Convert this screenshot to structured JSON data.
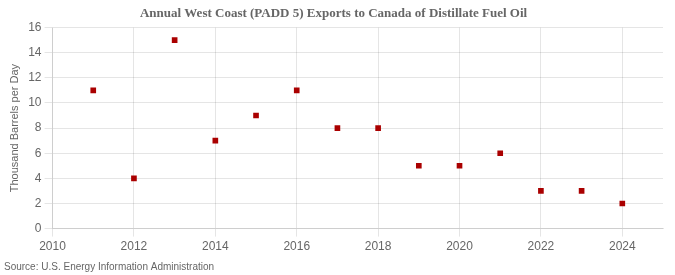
{
  "chart_data": {
    "type": "scatter",
    "title": "Annual West Coast (PADD 5) Exports to Canada of Distillate Fuel Oil",
    "ylabel": "Thousand Barrels per Day",
    "annotation": "Source: U.S. Energy Information Administration",
    "x": [
      2011,
      2012,
      2013,
      2014,
      2015,
      2016,
      2017,
      2018,
      2019,
      2020,
      2021,
      2022,
      2023,
      2024
    ],
    "values": [
      11,
      4,
      15,
      7,
      9,
      11,
      8,
      8,
      5,
      5,
      6,
      3,
      3,
      2
    ],
    "color": "#aa0000",
    "marker": "square",
    "xlim": [
      2010,
      2025
    ],
    "ylim": [
      0,
      16
    ],
    "xticks": [
      2010,
      2012,
      2014,
      2016,
      2018,
      2020,
      2022,
      2024
    ],
    "yticks": [
      0,
      2,
      4,
      6,
      8,
      10,
      12,
      14,
      16
    ],
    "grid": true
  }
}
